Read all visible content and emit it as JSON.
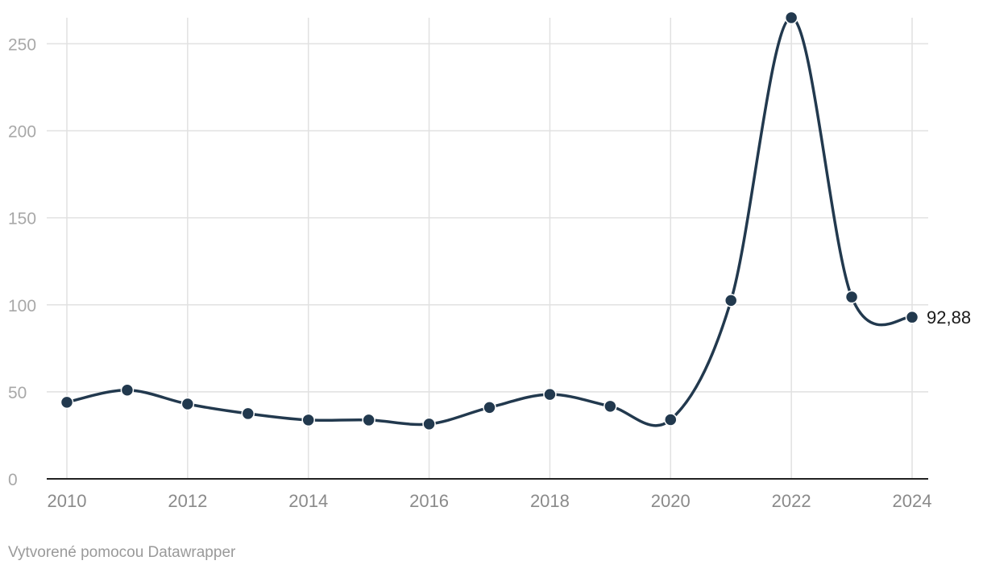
{
  "chart_data": {
    "type": "line",
    "x": [
      2010,
      2011,
      2012,
      2013,
      2014,
      2015,
      2016,
      2017,
      2018,
      2019,
      2020,
      2021,
      2022,
      2023,
      2024
    ],
    "series": [
      {
        "values": [
          44,
          51,
          43,
          37.5,
          33.8,
          33.8,
          31.5,
          41,
          48.5,
          41.7,
          34,
          102.5,
          265,
          104.5,
          92.88
        ]
      }
    ],
    "x_ticks": [
      {
        "value": 2010,
        "label": "2010"
      },
      {
        "value": 2012,
        "label": "2012"
      },
      {
        "value": 2014,
        "label": "2014"
      },
      {
        "value": 2016,
        "label": "2016"
      },
      {
        "value": 2018,
        "label": "2018"
      },
      {
        "value": 2020,
        "label": "2020"
      },
      {
        "value": 2022,
        "label": "2022"
      },
      {
        "value": 2024,
        "label": "2024"
      }
    ],
    "y_ticks": [
      {
        "value": 0,
        "label": "0"
      },
      {
        "value": 50,
        "label": "50"
      },
      {
        "value": 100,
        "label": "100"
      },
      {
        "value": 150,
        "label": "150"
      },
      {
        "value": 200,
        "label": "200"
      },
      {
        "value": 250,
        "label": "250"
      }
    ],
    "ylim": [
      0,
      265
    ],
    "xlim": [
      2010,
      2024
    ],
    "grid": true,
    "end_label": "92,88",
    "line_color": "#22394e"
  },
  "footer": {
    "credit": "Vytvorené pomocou Datawrapper"
  }
}
